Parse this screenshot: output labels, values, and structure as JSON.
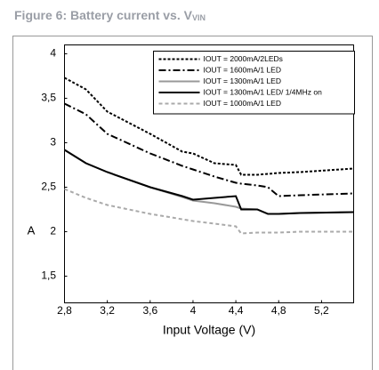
{
  "chart_data": {
    "type": "line",
    "title": "Figure 6: Battery current vs. V",
    "title_subscript": "VIN",
    "x_label": "Input Voltage (V)",
    "y_label": "A",
    "x": [
      2.8,
      3.0,
      3.2,
      3.6,
      3.9,
      4.0,
      4.2,
      4.4,
      4.45,
      4.6,
      4.7,
      4.8,
      5.0,
      5.5
    ],
    "series": [
      {
        "name": "IOUT = 2000mA/2LEDs",
        "color": "#000000",
        "dash": "dotted",
        "values": [
          3.73,
          3.6,
          3.35,
          3.1,
          2.9,
          2.88,
          2.77,
          2.75,
          2.64,
          2.64,
          2.65,
          2.66,
          2.67,
          2.71
        ]
      },
      {
        "name": "IOUT = 1600mA/1 LED",
        "color": "#000000",
        "dash": "dashdot",
        "values": [
          3.44,
          3.32,
          3.1,
          2.88,
          2.74,
          2.7,
          2.62,
          2.55,
          2.54,
          2.52,
          2.5,
          2.4,
          2.41,
          2.43
        ]
      },
      {
        "name": "IOUT = 1300mA/1 LED",
        "color": "#999999",
        "dash": "solid",
        "values": [
          2.92,
          2.77,
          2.67,
          2.5,
          2.39,
          2.35,
          2.32,
          2.28,
          2.26,
          2.25,
          2.2,
          2.2,
          2.21,
          2.22
        ]
      },
      {
        "name": "IOUT = 1300mA/1 LED/ 1/4MHz on",
        "color": "#000000",
        "dash": "solid",
        "values": [
          2.92,
          2.77,
          2.67,
          2.5,
          2.4,
          2.36,
          2.38,
          2.4,
          2.25,
          2.25,
          2.2,
          2.2,
          2.21,
          2.22
        ]
      },
      {
        "name": "IOUT = 1000mA/1 LED",
        "color": "#aaaaaa",
        "dash": "dashed",
        "values": [
          2.48,
          2.38,
          2.3,
          2.2,
          2.14,
          2.12,
          2.09,
          2.06,
          1.98,
          1.99,
          1.99,
          1.99,
          2.0,
          2.0
        ]
      }
    ],
    "xlim": [
      2.8,
      5.5
    ],
    "xticks": [
      {
        "value": 2.8,
        "label": "2,8"
      },
      {
        "value": 3.2,
        "label": "3,2"
      },
      {
        "value": 3.6,
        "label": "3,6"
      },
      4,
      {
        "value": 4.4,
        "label": "4,4"
      },
      {
        "value": 4.8,
        "label": "4,8"
      },
      {
        "value": 5.2,
        "label": "5,2"
      }
    ],
    "ylim": [
      1.2,
      4.1
    ],
    "yticks": [
      {
        "value": 1.5,
        "label": "1,5"
      },
      2,
      {
        "value": 2.5,
        "label": "2,5"
      },
      3,
      {
        "value": 3.5,
        "label": "3,5"
      },
      4
    ],
    "grid": false,
    "legend": "upper right"
  }
}
